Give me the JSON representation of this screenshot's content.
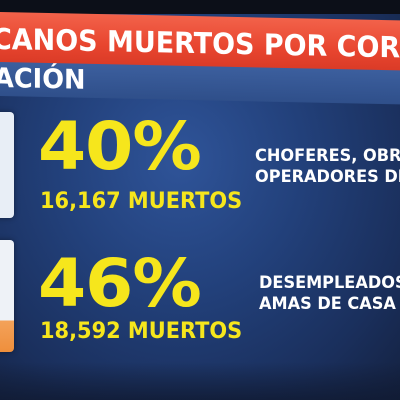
{
  "header": {
    "title": "CANOS MUERTOS POR CORONA",
    "subtitle": "ACIÓN"
  },
  "stats": [
    {
      "percent": "40%",
      "deaths": "16,167 MUERTOS",
      "category_lines": [
        "CHOFERES, OBRER",
        "OPERADORES DE M"
      ]
    },
    {
      "percent": "46%",
      "deaths": "18,592 MUERTOS",
      "category_lines": [
        "DESEMPLEADOS,",
        "AMAS DE CASA"
      ]
    }
  ],
  "colors": {
    "title_banner": "#e8452f",
    "background": "#22407a",
    "highlight_text": "#f6e61c",
    "label_text": "#ffffff"
  }
}
